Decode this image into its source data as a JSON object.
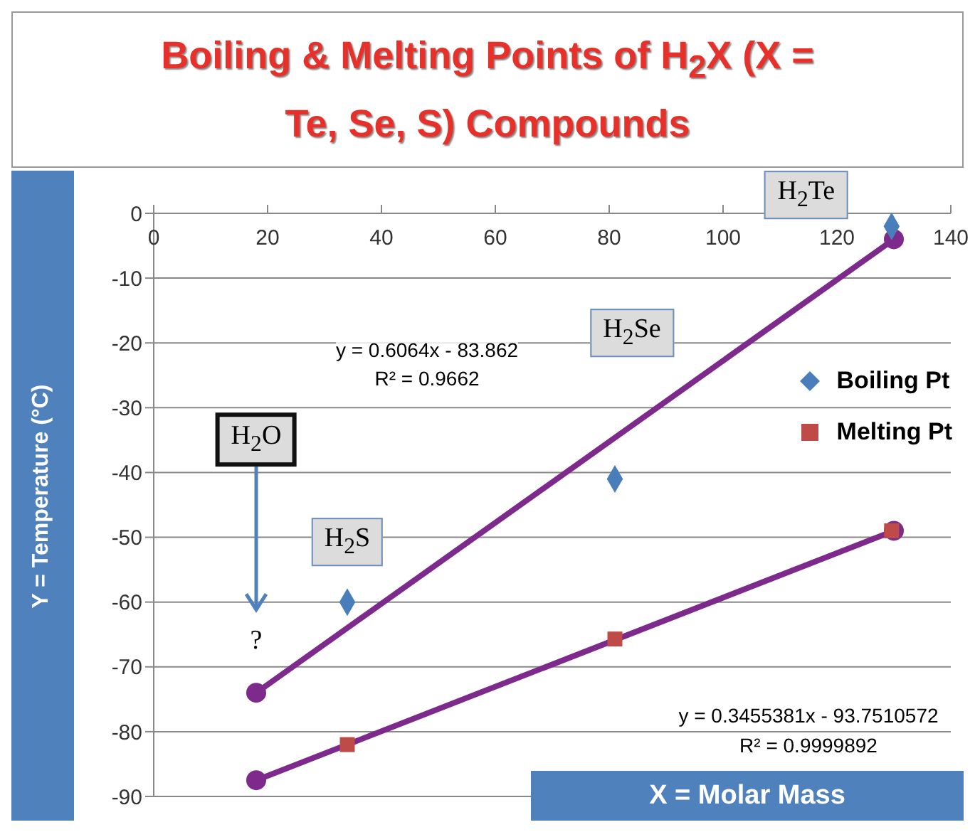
{
  "chart_data": {
    "type": "scatter",
    "title": "Boiling & Melting Points of H$_{2}$X (X = Te, Se, S) Compounds",
    "xlabel": "X = Molar Mass",
    "ylabel": "Y = Temperature (°C)",
    "xlim": [
      0,
      140
    ],
    "xticks": [
      0,
      20,
      40,
      60,
      80,
      100,
      120,
      140
    ],
    "ylim": [
      -90,
      0
    ],
    "yticks": [
      -90,
      -80,
      -70,
      -60,
      -50,
      -40,
      -30,
      -20,
      -10,
      0
    ],
    "grid": "y",
    "legend": "right",
    "series": [
      {
        "name": "Boiling Pt",
        "marker": "diamond",
        "color": "#4a7ebb",
        "x": [
          34,
          81,
          129.6
        ],
        "values": [
          -60,
          -41,
          -2
        ]
      },
      {
        "name": "Melting Pt",
        "marker": "square",
        "color": "#be4b48",
        "x": [
          34,
          81,
          129.6
        ],
        "values": [
          -82,
          -65.7,
          -49
        ]
      },
      {
        "type": "line",
        "marker": "circle",
        "color": "#7d2a8c",
        "x": [
          18,
          130
        ],
        "values": [
          -74,
          -4
        ]
      },
      {
        "type": "line",
        "marker": "circle",
        "color": "#7d2a8c",
        "x": [
          18,
          130
        ],
        "values": [
          -87.5,
          -49
        ]
      }
    ],
    "annotations": [
      {
        "text": "H$_{2}$Te",
        "x": 129.6,
        "y": -2
      },
      "H$_{2}$Se",
      {
        "text": "H$_{2}$S",
        "x": 34,
        "y": -60
      },
      "H$_{2}$O",
      "?",
      "y = 0.6064x - 83.862",
      "R² = 0.9662",
      "y = 0.3455381x - 93.7510572",
      "R² = 0.9999892"
    ]
  }
}
